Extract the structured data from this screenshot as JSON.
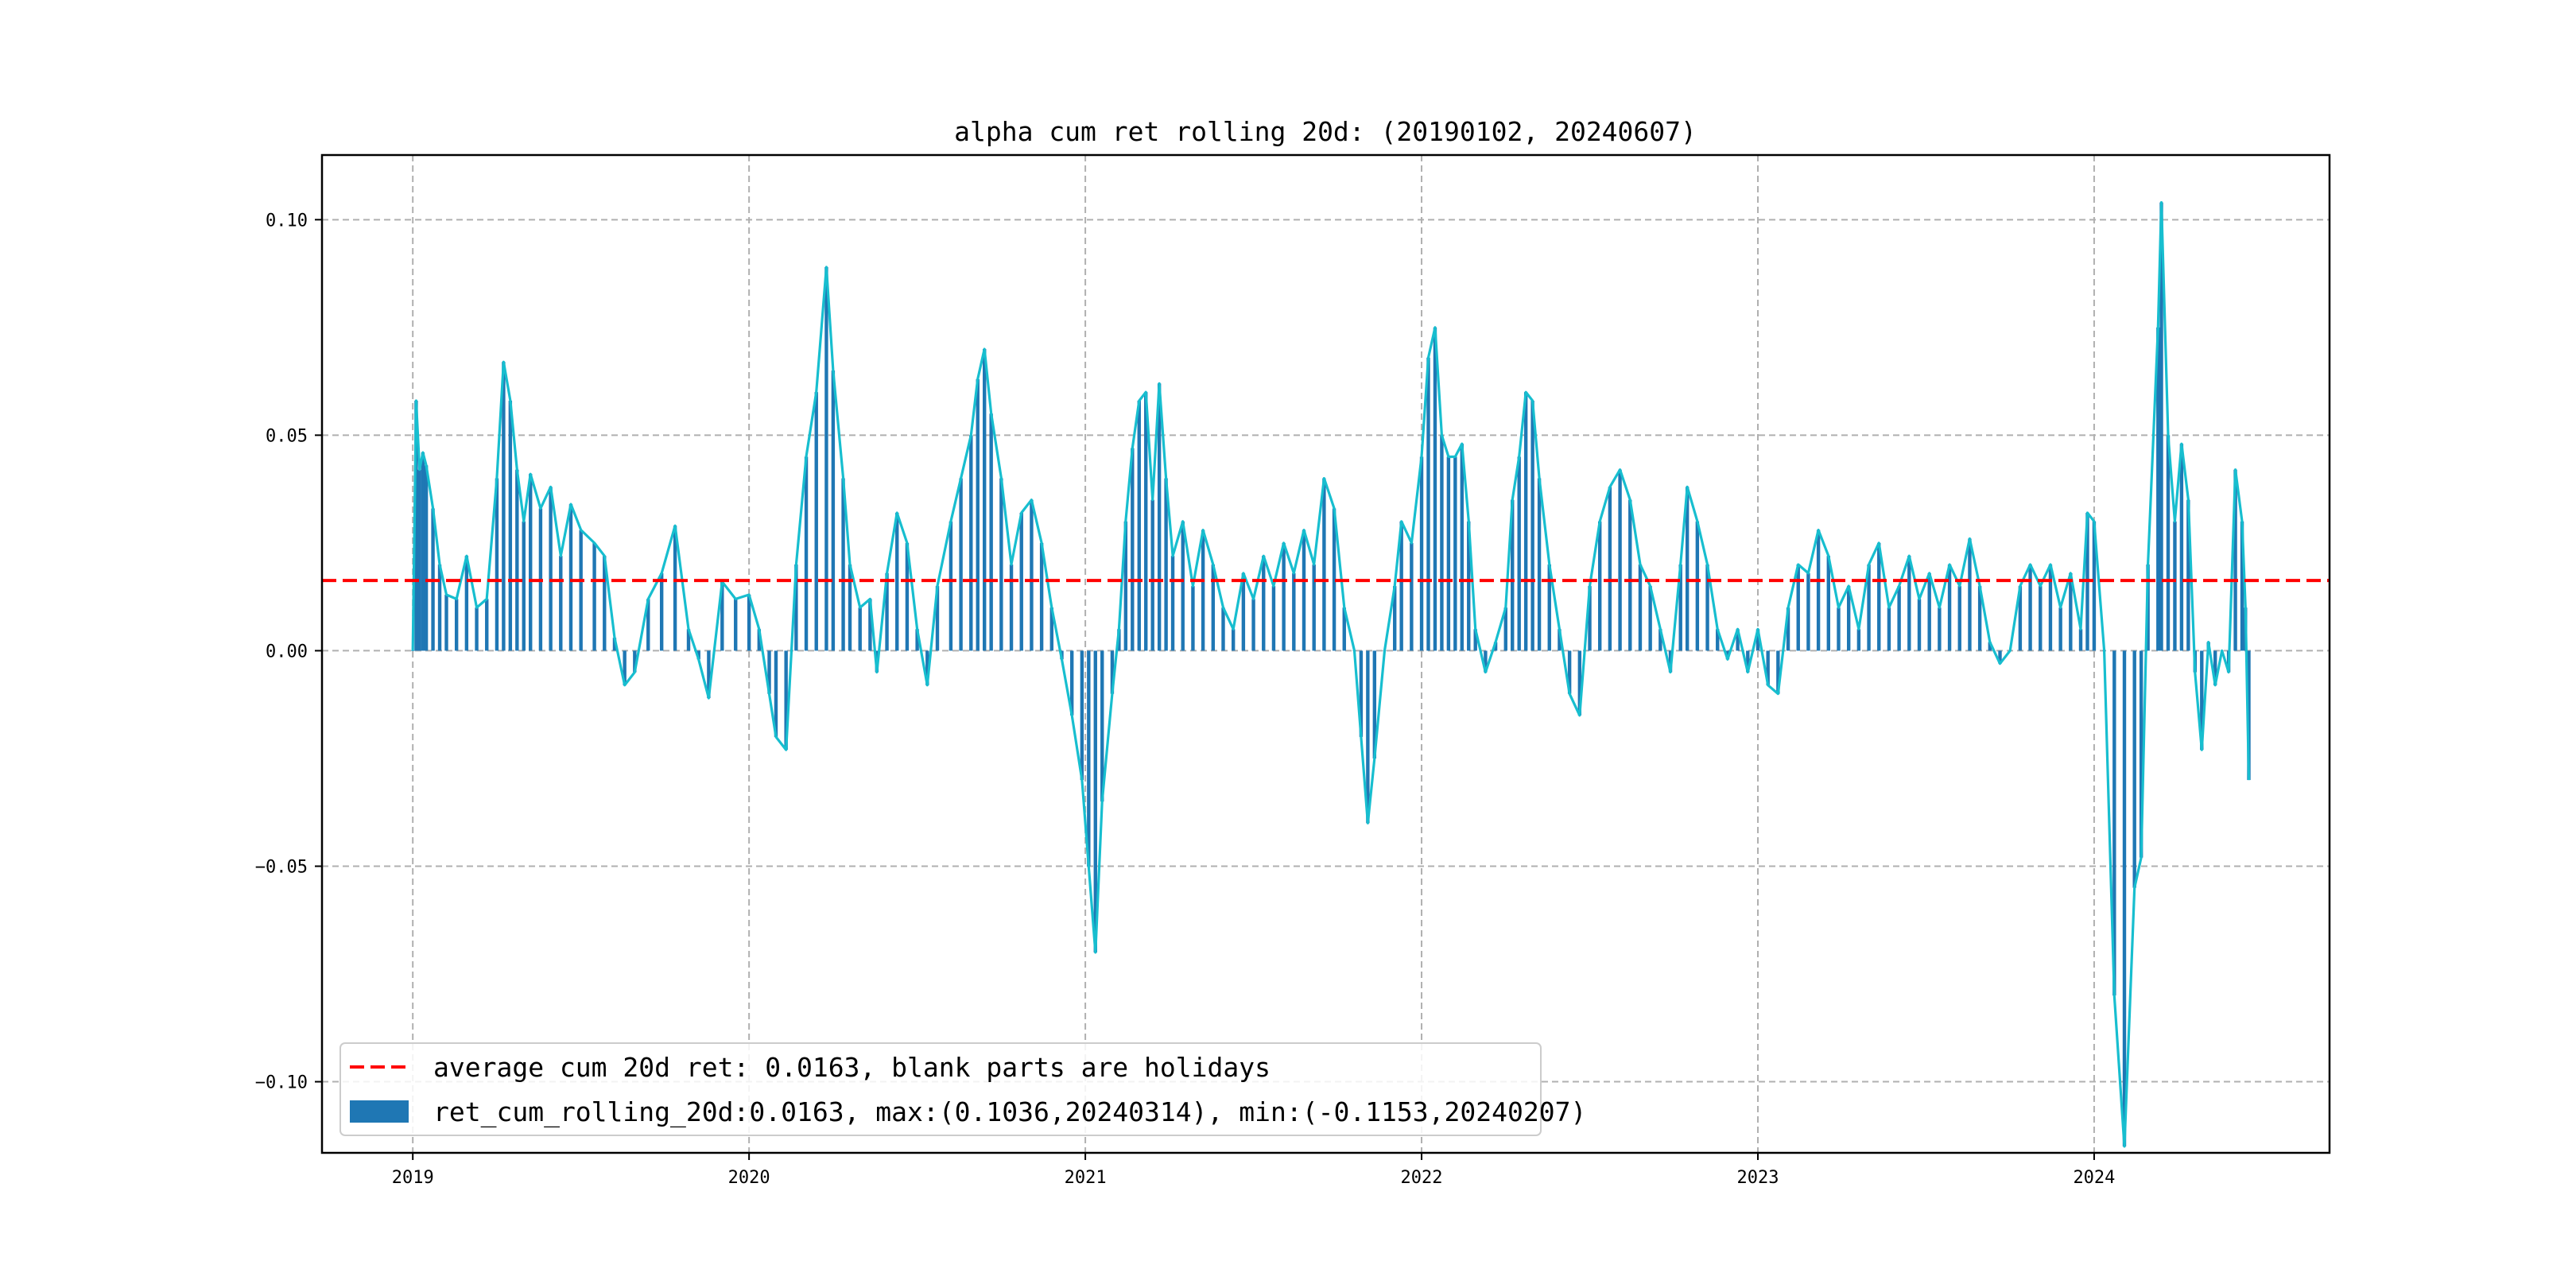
{
  "chart_data": {
    "type": "bar",
    "title": "alpha cum ret rolling 20d: (20190102, 20240607)",
    "xlabel": "",
    "ylabel": "",
    "xlim": [
      2018.73,
      2024.7
    ],
    "ylim": [
      -0.1165,
      0.115
    ],
    "x_ticks": [
      2019,
      2020,
      2021,
      2022,
      2023,
      2024
    ],
    "x_tick_labels": [
      "2019",
      "2020",
      "2021",
      "2022",
      "2023",
      "2024"
    ],
    "y_ticks": [
      -0.1,
      -0.05,
      0.0,
      0.05,
      0.1
    ],
    "y_tick_labels": [
      "−0.10",
      "−0.05",
      "0.00",
      "0.05",
      "0.10"
    ],
    "grid": true,
    "legend_position": "lower-left",
    "average_line": {
      "value": 0.0163,
      "color": "#ff0000",
      "label": "average cum 20d ret: 0.0163, blank parts are holidays"
    },
    "series": [
      {
        "name": "ret_cum_rolling_20d:0.0163, max:(0.1036,20240314), min:(-0.1153,20240207)",
        "kind": "bar+line",
        "bar_color": "#1f77b4",
        "line_color": "#17becf",
        "points": [
          [
            2019.0,
            0.0
          ],
          [
            2019.01,
            0.058
          ],
          [
            2019.02,
            0.042
          ],
          [
            2019.03,
            0.046
          ],
          [
            2019.04,
            0.043
          ],
          [
            2019.06,
            0.033
          ],
          [
            2019.08,
            0.02
          ],
          [
            2019.1,
            0.013
          ],
          [
            2019.13,
            0.012
          ],
          [
            2019.16,
            0.022
          ],
          [
            2019.19,
            0.01
          ],
          [
            2019.22,
            0.012
          ],
          [
            2019.25,
            0.04
          ],
          [
            2019.27,
            0.067
          ],
          [
            2019.29,
            0.058
          ],
          [
            2019.31,
            0.042
          ],
          [
            2019.33,
            0.03
          ],
          [
            2019.35,
            0.041
          ],
          [
            2019.38,
            0.033
          ],
          [
            2019.41,
            0.038
          ],
          [
            2019.44,
            0.022
          ],
          [
            2019.47,
            0.034
          ],
          [
            2019.5,
            0.028
          ],
          [
            2019.54,
            0.025
          ],
          [
            2019.57,
            0.022
          ],
          [
            2019.6,
            0.003
          ],
          [
            2019.63,
            -0.008
          ],
          [
            2019.66,
            -0.005
          ],
          [
            2019.7,
            0.012
          ],
          [
            2019.74,
            0.018
          ],
          [
            2019.78,
            0.029
          ],
          [
            2019.82,
            0.005
          ],
          [
            2019.85,
            -0.002
          ],
          [
            2019.88,
            -0.011
          ],
          [
            2019.92,
            0.016
          ],
          [
            2019.96,
            0.012
          ],
          [
            2020.0,
            0.013
          ],
          [
            2020.03,
            0.005
          ],
          [
            2020.06,
            -0.01
          ],
          [
            2020.08,
            -0.02
          ],
          [
            2020.11,
            -0.023
          ],
          [
            2020.14,
            0.02
          ],
          [
            2020.17,
            0.045
          ],
          [
            2020.2,
            0.06
          ],
          [
            2020.23,
            0.089
          ],
          [
            2020.25,
            0.065
          ],
          [
            2020.28,
            0.04
          ],
          [
            2020.3,
            0.02
          ],
          [
            2020.33,
            0.01
          ],
          [
            2020.36,
            0.012
          ],
          [
            2020.38,
            -0.005
          ],
          [
            2020.41,
            0.018
          ],
          [
            2020.44,
            0.032
          ],
          [
            2020.47,
            0.025
          ],
          [
            2020.5,
            0.005
          ],
          [
            2020.53,
            -0.008
          ],
          [
            2020.56,
            0.015
          ],
          [
            2020.6,
            0.03
          ],
          [
            2020.63,
            0.04
          ],
          [
            2020.66,
            0.05
          ],
          [
            2020.68,
            0.063
          ],
          [
            2020.7,
            0.07
          ],
          [
            2020.72,
            0.055
          ],
          [
            2020.75,
            0.04
          ],
          [
            2020.78,
            0.02
          ],
          [
            2020.81,
            0.032
          ],
          [
            2020.84,
            0.035
          ],
          [
            2020.87,
            0.025
          ],
          [
            2020.9,
            0.01
          ],
          [
            2020.93,
            -0.002
          ],
          [
            2020.96,
            -0.015
          ],
          [
            2020.99,
            -0.03
          ],
          [
            2021.01,
            -0.05
          ],
          [
            2021.03,
            -0.07
          ],
          [
            2021.05,
            -0.035
          ],
          [
            2021.08,
            -0.01
          ],
          [
            2021.1,
            0.005
          ],
          [
            2021.12,
            0.03
          ],
          [
            2021.14,
            0.047
          ],
          [
            2021.16,
            0.058
          ],
          [
            2021.18,
            0.06
          ],
          [
            2021.2,
            0.035
          ],
          [
            2021.22,
            0.062
          ],
          [
            2021.24,
            0.04
          ],
          [
            2021.26,
            0.022
          ],
          [
            2021.29,
            0.03
          ],
          [
            2021.32,
            0.015
          ],
          [
            2021.35,
            0.028
          ],
          [
            2021.38,
            0.02
          ],
          [
            2021.41,
            0.01
          ],
          [
            2021.44,
            0.005
          ],
          [
            2021.47,
            0.018
          ],
          [
            2021.5,
            0.012
          ],
          [
            2021.53,
            0.022
          ],
          [
            2021.56,
            0.015
          ],
          [
            2021.59,
            0.025
          ],
          [
            2021.62,
            0.018
          ],
          [
            2021.65,
            0.028
          ],
          [
            2021.68,
            0.02
          ],
          [
            2021.71,
            0.04
          ],
          [
            2021.74,
            0.033
          ],
          [
            2021.77,
            0.01
          ],
          [
            2021.8,
            0.0
          ],
          [
            2021.82,
            -0.02
          ],
          [
            2021.84,
            -0.04
          ],
          [
            2021.86,
            -0.025
          ],
          [
            2021.89,
            0.0
          ],
          [
            2021.92,
            0.015
          ],
          [
            2021.94,
            0.03
          ],
          [
            2021.97,
            0.025
          ],
          [
            2022.0,
            0.045
          ],
          [
            2022.02,
            0.068
          ],
          [
            2022.04,
            0.075
          ],
          [
            2022.06,
            0.05
          ],
          [
            2022.08,
            0.045
          ],
          [
            2022.1,
            0.045
          ],
          [
            2022.12,
            0.048
          ],
          [
            2022.14,
            0.03
          ],
          [
            2022.16,
            0.005
          ],
          [
            2022.19,
            -0.005
          ],
          [
            2022.22,
            0.002
          ],
          [
            2022.25,
            0.01
          ],
          [
            2022.27,
            0.035
          ],
          [
            2022.29,
            0.045
          ],
          [
            2022.31,
            0.06
          ],
          [
            2022.33,
            0.058
          ],
          [
            2022.35,
            0.04
          ],
          [
            2022.38,
            0.02
          ],
          [
            2022.41,
            0.005
          ],
          [
            2022.44,
            -0.01
          ],
          [
            2022.47,
            -0.015
          ],
          [
            2022.5,
            0.015
          ],
          [
            2022.53,
            0.03
          ],
          [
            2022.56,
            0.038
          ],
          [
            2022.59,
            0.042
          ],
          [
            2022.62,
            0.035
          ],
          [
            2022.65,
            0.02
          ],
          [
            2022.68,
            0.015
          ],
          [
            2022.71,
            0.005
          ],
          [
            2022.74,
            -0.005
          ],
          [
            2022.77,
            0.02
          ],
          [
            2022.79,
            0.038
          ],
          [
            2022.82,
            0.03
          ],
          [
            2022.85,
            0.02
          ],
          [
            2022.88,
            0.005
          ],
          [
            2022.91,
            -0.002
          ],
          [
            2022.94,
            0.005
          ],
          [
            2022.97,
            -0.005
          ],
          [
            2023.0,
            0.005
          ],
          [
            2023.03,
            -0.008
          ],
          [
            2023.06,
            -0.01
          ],
          [
            2023.09,
            0.01
          ],
          [
            2023.12,
            0.02
          ],
          [
            2023.15,
            0.018
          ],
          [
            2023.18,
            0.028
          ],
          [
            2023.21,
            0.022
          ],
          [
            2023.24,
            0.01
          ],
          [
            2023.27,
            0.015
          ],
          [
            2023.3,
            0.005
          ],
          [
            2023.33,
            0.02
          ],
          [
            2023.36,
            0.025
          ],
          [
            2023.39,
            0.01
          ],
          [
            2023.42,
            0.015
          ],
          [
            2023.45,
            0.022
          ],
          [
            2023.48,
            0.012
          ],
          [
            2023.51,
            0.018
          ],
          [
            2023.54,
            0.01
          ],
          [
            2023.57,
            0.02
          ],
          [
            2023.6,
            0.015
          ],
          [
            2023.63,
            0.026
          ],
          [
            2023.66,
            0.015
          ],
          [
            2023.69,
            0.002
          ],
          [
            2023.72,
            -0.003
          ],
          [
            2023.75,
            0.0
          ],
          [
            2023.78,
            0.015
          ],
          [
            2023.81,
            0.02
          ],
          [
            2023.84,
            0.015
          ],
          [
            2023.87,
            0.02
          ],
          [
            2023.9,
            0.01
          ],
          [
            2023.93,
            0.018
          ],
          [
            2023.96,
            0.005
          ],
          [
            2023.98,
            0.032
          ],
          [
            2024.0,
            0.03
          ],
          [
            2024.03,
            0.0
          ],
          [
            2024.06,
            -0.08
          ],
          [
            2024.09,
            -0.115
          ],
          [
            2024.12,
            -0.055
          ],
          [
            2024.14,
            -0.048
          ],
          [
            2024.16,
            0.02
          ],
          [
            2024.19,
            0.075
          ],
          [
            2024.2,
            0.104
          ],
          [
            2024.22,
            0.05
          ],
          [
            2024.24,
            0.03
          ],
          [
            2024.26,
            0.048
          ],
          [
            2024.28,
            0.035
          ],
          [
            2024.3,
            -0.005
          ],
          [
            2024.32,
            -0.023
          ],
          [
            2024.34,
            0.002
          ],
          [
            2024.36,
            -0.008
          ],
          [
            2024.38,
            0.0
          ],
          [
            2024.4,
            -0.005
          ],
          [
            2024.42,
            0.042
          ],
          [
            2024.44,
            0.03
          ],
          [
            2024.45,
            0.01
          ],
          [
            2024.46,
            -0.03
          ]
        ]
      }
    ]
  }
}
